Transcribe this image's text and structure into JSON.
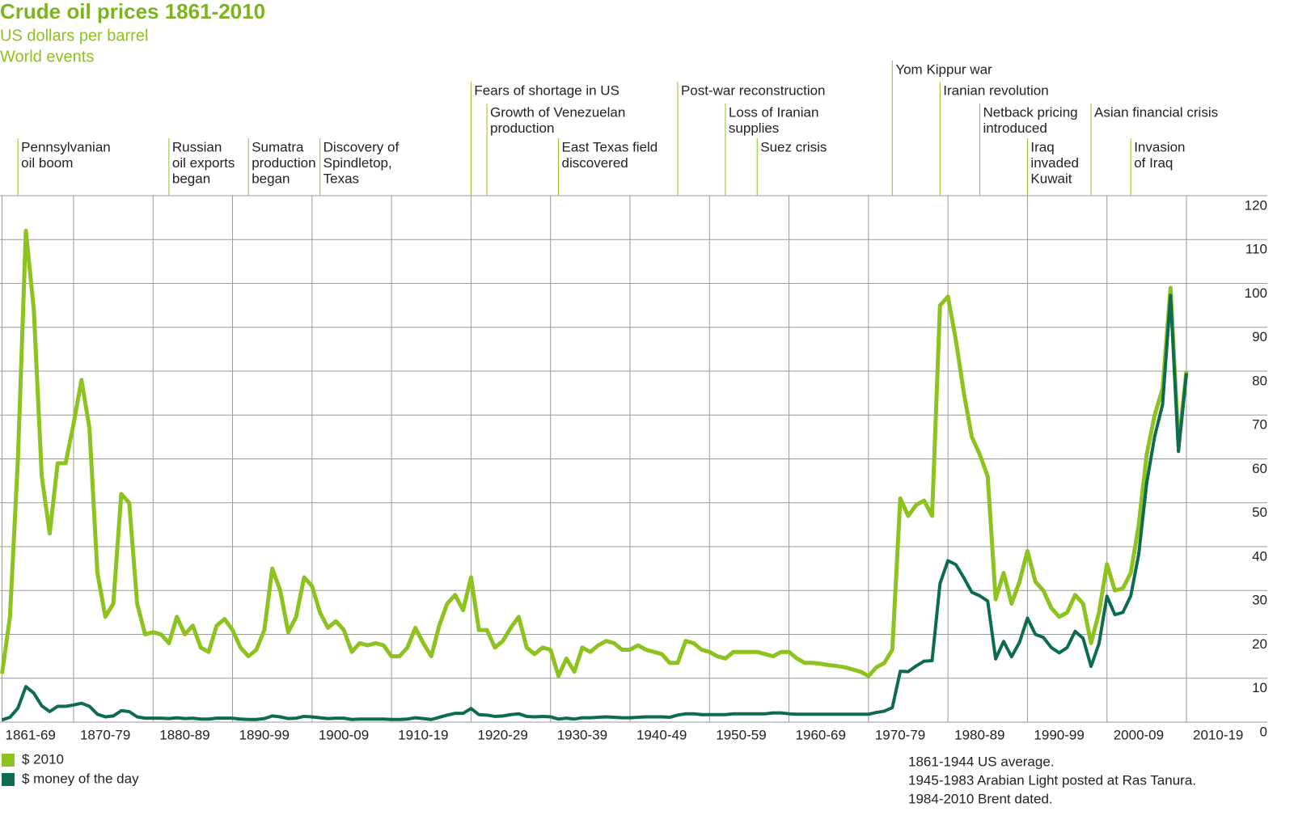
{
  "chart_data": {
    "type": "line",
    "title": "Crude oil prices 1861-2010",
    "subtitle": "US dollars per barrel",
    "events_label": "World events",
    "notes": [
      "1861-1944 US average.",
      "1945-1983 Arabian Light posted at Ras Tanura.",
      "1984-2010 Brent dated."
    ],
    "annotations": [
      {
        "year": 1863,
        "lines": [
          "Pennsylvanian",
          "oil boom"
        ]
      },
      {
        "year": 1882,
        "lines": [
          "Russian",
          "oil exports",
          "began"
        ]
      },
      {
        "year": 1892,
        "lines": [
          "Sumatra",
          "production",
          "began"
        ]
      },
      {
        "year": 1901,
        "lines": [
          "Discovery of",
          "Spindletop,",
          "Texas"
        ]
      },
      {
        "year": 1920,
        "lines": [
          "Fears of shortage in US"
        ]
      },
      {
        "year": 1922,
        "lines": [
          "Growth of Venezuelan",
          "production"
        ]
      },
      {
        "year": 1931,
        "lines": [
          "East Texas field",
          "discovered"
        ]
      },
      {
        "year": 1946,
        "lines": [
          "Post-war reconstruction"
        ]
      },
      {
        "year": 1952,
        "lines": [
          "Loss of Iranian",
          "supplies"
        ]
      },
      {
        "year": 1956,
        "lines": [
          "Suez crisis"
        ]
      },
      {
        "year": 1973,
        "lines": [
          "Yom Kippur war"
        ]
      },
      {
        "year": 1979,
        "lines": [
          "Iranian revolution"
        ]
      },
      {
        "year": 1984,
        "lines": [
          "Netback pricing",
          "introduced"
        ]
      },
      {
        "year": 1990,
        "lines": [
          "Iraq",
          "invaded",
          "Kuwait"
        ]
      },
      {
        "year": 1998,
        "lines": [
          "Asian financial crisis"
        ]
      },
      {
        "year": 2003,
        "lines": [
          "Invasion",
          "of Iraq"
        ]
      }
    ],
    "x": [
      1861,
      1862,
      1863,
      1864,
      1865,
      1866,
      1867,
      1868,
      1869,
      1870,
      1871,
      1872,
      1873,
      1874,
      1875,
      1876,
      1877,
      1878,
      1879,
      1880,
      1881,
      1882,
      1883,
      1884,
      1885,
      1886,
      1887,
      1888,
      1889,
      1890,
      1891,
      1892,
      1893,
      1894,
      1895,
      1896,
      1897,
      1898,
      1899,
      1900,
      1901,
      1902,
      1903,
      1904,
      1905,
      1906,
      1907,
      1908,
      1909,
      1910,
      1911,
      1912,
      1913,
      1914,
      1915,
      1916,
      1917,
      1918,
      1919,
      1920,
      1921,
      1922,
      1923,
      1924,
      1925,
      1926,
      1927,
      1928,
      1929,
      1930,
      1931,
      1932,
      1933,
      1934,
      1935,
      1936,
      1937,
      1938,
      1939,
      1940,
      1941,
      1942,
      1943,
      1944,
      1945,
      1946,
      1947,
      1948,
      1949,
      1950,
      1951,
      1952,
      1953,
      1954,
      1955,
      1956,
      1957,
      1958,
      1959,
      1960,
      1961,
      1962,
      1963,
      1964,
      1965,
      1966,
      1967,
      1968,
      1969,
      1970,
      1971,
      1972,
      1973,
      1974,
      1975,
      1976,
      1977,
      1978,
      1979,
      1980,
      1981,
      1982,
      1983,
      1984,
      1985,
      1986,
      1987,
      1988,
      1989,
      1990,
      1991,
      1992,
      1993,
      1994,
      1995,
      1996,
      1997,
      1998,
      1999,
      2000,
      2001,
      2002,
      2003,
      2004,
      2005,
      2006,
      2007,
      2008,
      2009,
      2010
    ],
    "series": [
      {
        "name": "$ 2010",
        "color": "#8dc21f",
        "values": [
          11,
          24,
          60,
          112,
          94,
          56,
          43,
          59,
          59,
          68,
          78,
          67,
          34,
          24,
          27,
          52,
          50,
          27,
          20,
          20.5,
          20,
          18,
          24,
          20,
          22,
          17,
          16,
          22,
          23.5,
          21,
          17,
          15,
          16.5,
          21,
          35,
          30,
          20.5,
          24,
          33,
          31,
          25,
          21.5,
          23,
          21,
          16,
          18,
          17.5,
          18,
          17.5,
          15,
          15,
          17,
          21.5,
          18,
          15,
          22,
          27,
          29,
          25.5,
          33,
          21,
          21,
          17,
          18.5,
          21.5,
          24,
          17,
          15.5,
          17,
          16.5,
          10.5,
          14.5,
          11.5,
          17,
          16,
          17.5,
          18.5,
          18,
          16.5,
          16.5,
          17.5,
          16.5,
          16,
          15.5,
          13.5,
          13.5,
          18.5,
          18,
          16.5,
          16,
          15,
          14.5,
          16,
          16,
          16,
          16,
          15.5,
          15,
          16,
          16,
          14.5,
          13.5,
          13.5,
          13.3,
          13,
          12.8,
          12.5,
          12,
          11.5,
          10.5,
          12.5,
          13.5,
          16.5,
          51,
          47,
          49.5,
          50.5,
          47,
          95,
          97,
          87,
          75,
          65,
          61,
          56,
          28,
          34,
          27,
          32,
          39,
          32,
          30,
          26,
          24,
          25,
          29,
          27,
          18,
          25,
          36,
          30,
          30.5,
          34,
          45,
          61,
          70,
          76,
          99,
          63,
          80
        ]
      },
      {
        "name": "$ money of the day",
        "color": "#0d6b4f",
        "values": [
          0.5,
          1.1,
          3.2,
          8.1,
          6.6,
          3.7,
          2.4,
          3.6,
          3.6,
          3.9,
          4.3,
          3.6,
          1.8,
          1.2,
          1.4,
          2.6,
          2.4,
          1.2,
          0.9,
          0.9,
          0.9,
          0.8,
          1.0,
          0.8,
          0.9,
          0.7,
          0.7,
          0.9,
          0.9,
          0.9,
          0.7,
          0.6,
          0.6,
          0.8,
          1.4,
          1.2,
          0.8,
          0.9,
          1.3,
          1.2,
          1.0,
          0.8,
          0.9,
          0.9,
          0.6,
          0.7,
          0.7,
          0.7,
          0.7,
          0.6,
          0.6,
          0.7,
          1.0,
          0.8,
          0.6,
          1.1,
          1.6,
          2.0,
          2.0,
          3.1,
          1.7,
          1.6,
          1.3,
          1.4,
          1.7,
          1.9,
          1.3,
          1.2,
          1.3,
          1.2,
          0.7,
          0.9,
          0.7,
          1.0,
          1.0,
          1.1,
          1.2,
          1.1,
          1.0,
          1.0,
          1.1,
          1.2,
          1.2,
          1.2,
          1.1,
          1.6,
          1.9,
          1.9,
          1.7,
          1.7,
          1.7,
          1.7,
          1.9,
          1.9,
          1.9,
          1.9,
          1.9,
          2.1,
          2.1,
          1.9,
          1.8,
          1.8,
          1.8,
          1.8,
          1.8,
          1.8,
          1.8,
          1.8,
          1.8,
          1.8,
          2.2,
          2.5,
          3.3,
          11.6,
          11.5,
          12.8,
          13.9,
          14.0,
          31.6,
          36.8,
          35.9,
          32.9,
          29.6,
          28.8,
          27.6,
          14.4,
          18.4,
          14.9,
          18.2,
          23.7,
          20.0,
          19.3,
          17.0,
          15.8,
          17.0,
          20.7,
          19.1,
          12.7,
          17.9,
          28.7,
          24.5,
          25.0,
          28.8,
          38.3,
          54.5,
          65.1,
          72.4,
          97.3,
          61.7,
          79.5
        ]
      }
    ],
    "xlim": [
      1861,
      2010
    ],
    "xticks": [
      {
        "value": 1861,
        "label": "1861-69"
      },
      {
        "value": 1870,
        "label": "1870-79"
      },
      {
        "value": 1880,
        "label": "1880-89"
      },
      {
        "value": 1890,
        "label": "1890-99"
      },
      {
        "value": 1900,
        "label": "1900-09"
      },
      {
        "value": 1910,
        "label": "1910-19"
      },
      {
        "value": 1920,
        "label": "1920-29"
      },
      {
        "value": 1930,
        "label": "1930-39"
      },
      {
        "value": 1940,
        "label": "1940-49"
      },
      {
        "value": 1950,
        "label": "1950-59"
      },
      {
        "value": 1960,
        "label": "1960-69"
      },
      {
        "value": 1970,
        "label": "1970-79"
      },
      {
        "value": 1980,
        "label": "1980-89"
      },
      {
        "value": 1990,
        "label": "1990-99"
      },
      {
        "value": 2000,
        "label": "2000-09"
      },
      {
        "value": 2010,
        "label": "2010-19"
      }
    ],
    "ylim": [
      0,
      120
    ],
    "yticks": [
      0,
      10,
      20,
      30,
      40,
      50,
      60,
      70,
      80,
      90,
      100,
      110,
      120
    ],
    "grid": true
  }
}
